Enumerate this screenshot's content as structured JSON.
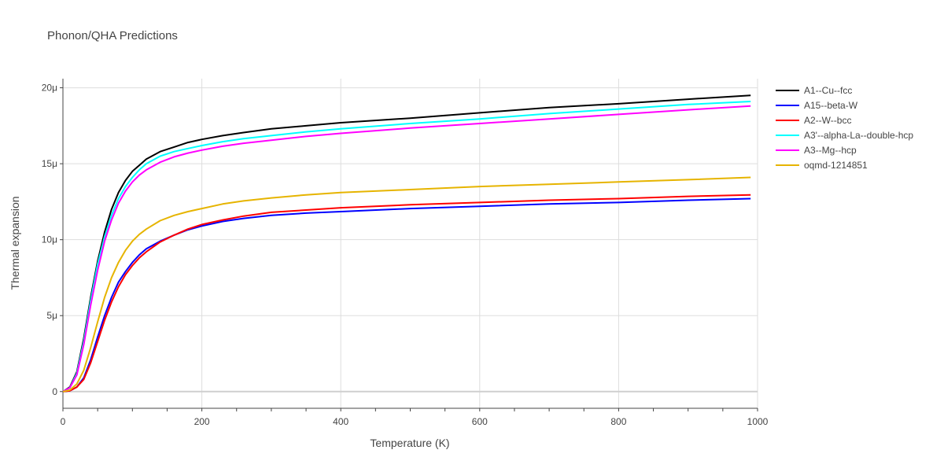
{
  "chart_data": {
    "type": "line",
    "title": "Phonon/QHA Predictions",
    "xlabel": "Temperature (K)",
    "ylabel": "Thermal expansion",
    "xlim": [
      0,
      1000
    ],
    "ylim": [
      -1.1,
      20.6
    ],
    "x_ticks": [
      0,
      200,
      400,
      600,
      800,
      1000
    ],
    "x_tick_labels": [
      "0",
      "200",
      "400",
      "600",
      "800",
      "1000"
    ],
    "y_ticks": [
      0,
      5,
      10,
      15,
      20
    ],
    "y_tick_labels": [
      "0",
      "5μ",
      "10μ",
      "15μ",
      "20μ"
    ],
    "y_unit": "1e-6 (μ)",
    "grid": true,
    "legend_position": "right",
    "series": [
      {
        "name": "A1--Cu--fcc",
        "color": "#000000",
        "x": [
          0,
          10,
          20,
          30,
          40,
          50,
          60,
          70,
          80,
          90,
          100,
          110,
          120,
          140,
          160,
          180,
          200,
          230,
          260,
          300,
          350,
          400,
          500,
          600,
          700,
          800,
          900,
          990
        ],
        "y": [
          0,
          0.3,
          1.3,
          3.5,
          6.2,
          8.6,
          10.5,
          12.0,
          13.1,
          13.9,
          14.5,
          14.9,
          15.3,
          15.8,
          16.1,
          16.4,
          16.6,
          16.85,
          17.05,
          17.3,
          17.5,
          17.7,
          18.0,
          18.35,
          18.7,
          18.95,
          19.25,
          19.5
        ]
      },
      {
        "name": "A15--beta-W",
        "color": "#0000ff",
        "x": [
          0,
          10,
          20,
          30,
          40,
          50,
          60,
          70,
          80,
          90,
          100,
          110,
          120,
          140,
          160,
          180,
          200,
          230,
          260,
          300,
          350,
          400,
          500,
          600,
          700,
          800,
          900,
          990
        ],
        "y": [
          0,
          0.05,
          0.3,
          0.9,
          2.1,
          3.6,
          5.0,
          6.2,
          7.2,
          7.9,
          8.5,
          9.0,
          9.4,
          9.9,
          10.3,
          10.65,
          10.9,
          11.2,
          11.4,
          11.6,
          11.75,
          11.85,
          12.05,
          12.2,
          12.35,
          12.45,
          12.6,
          12.7
        ]
      },
      {
        "name": "A2--W--bcc",
        "color": "#ff0000",
        "x": [
          0,
          10,
          20,
          30,
          40,
          50,
          60,
          70,
          80,
          90,
          100,
          110,
          120,
          140,
          160,
          180,
          200,
          230,
          260,
          300,
          350,
          400,
          500,
          600,
          700,
          800,
          900,
          990
        ],
        "y": [
          0,
          0.05,
          0.3,
          0.8,
          1.9,
          3.3,
          4.7,
          5.9,
          6.9,
          7.7,
          8.3,
          8.8,
          9.2,
          9.85,
          10.3,
          10.7,
          11.0,
          11.3,
          11.55,
          11.8,
          11.95,
          12.1,
          12.3,
          12.45,
          12.6,
          12.7,
          12.85,
          12.95
        ]
      },
      {
        "name": "A3'--alpha-La--double-hcp",
        "color": "#00ffff",
        "x": [
          0,
          10,
          20,
          30,
          40,
          50,
          60,
          70,
          80,
          90,
          100,
          110,
          120,
          140,
          160,
          180,
          200,
          230,
          260,
          300,
          350,
          400,
          500,
          600,
          700,
          800,
          900,
          990
        ],
        "y": [
          0,
          0.25,
          1.2,
          3.3,
          6.0,
          8.4,
          10.2,
          11.6,
          12.7,
          13.5,
          14.1,
          14.6,
          15.0,
          15.5,
          15.8,
          16.0,
          16.2,
          16.45,
          16.65,
          16.85,
          17.1,
          17.3,
          17.65,
          17.95,
          18.3,
          18.6,
          18.9,
          19.1
        ]
      },
      {
        "name": "A3--Mg--hcp",
        "color": "#ff00ff",
        "x": [
          0,
          10,
          20,
          30,
          40,
          50,
          60,
          70,
          80,
          90,
          100,
          110,
          120,
          140,
          160,
          180,
          200,
          230,
          260,
          300,
          350,
          400,
          500,
          600,
          700,
          800,
          900,
          990
        ],
        "y": [
          0,
          0.25,
          1.1,
          3.1,
          5.7,
          8.0,
          9.9,
          11.3,
          12.4,
          13.2,
          13.8,
          14.25,
          14.6,
          15.1,
          15.45,
          15.7,
          15.9,
          16.15,
          16.35,
          16.55,
          16.8,
          17.0,
          17.35,
          17.65,
          17.95,
          18.25,
          18.55,
          18.8
        ]
      },
      {
        "name": "oqmd-1214851",
        "color": "#e6b400",
        "x": [
          0,
          10,
          20,
          30,
          40,
          50,
          60,
          70,
          80,
          90,
          100,
          110,
          120,
          140,
          160,
          180,
          200,
          230,
          260,
          300,
          350,
          400,
          500,
          600,
          700,
          800,
          900,
          990
        ],
        "y": [
          0,
          0.1,
          0.5,
          1.4,
          2.9,
          4.6,
          6.2,
          7.5,
          8.5,
          9.3,
          9.9,
          10.35,
          10.7,
          11.25,
          11.6,
          11.85,
          12.05,
          12.35,
          12.55,
          12.75,
          12.95,
          13.1,
          13.3,
          13.5,
          13.65,
          13.8,
          13.95,
          14.1
        ]
      }
    ]
  }
}
